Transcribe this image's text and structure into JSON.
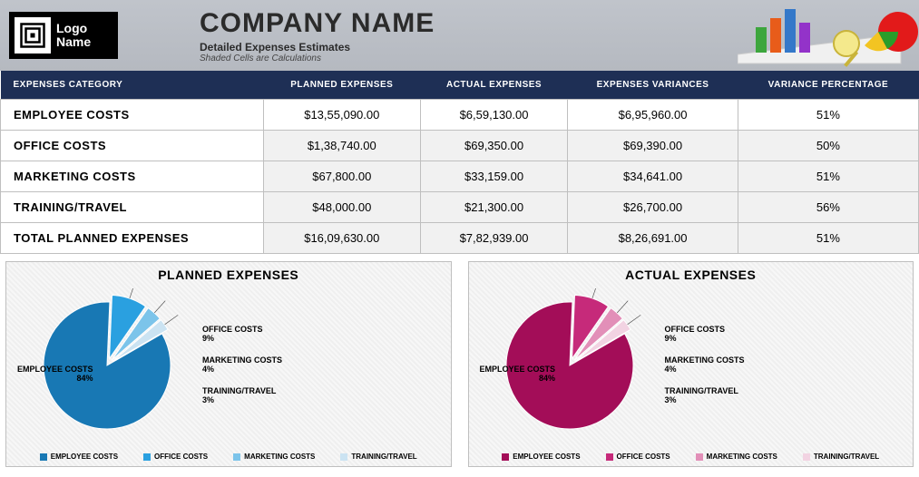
{
  "header": {
    "logo_line1": "Logo",
    "logo_line2": "Name",
    "company_name": "COMPANY NAME",
    "subtitle": "Detailed Expenses Estimates",
    "subnote": "Shaded Cells are Calculations"
  },
  "table": {
    "columns": [
      "EXPENSES CATEGORY",
      "PLANNED EXPENSES",
      "ACTUAL EXPENSES",
      "EXPENSES VARIANCES",
      "VARIANCE PERCENTAGE"
    ],
    "rows": [
      {
        "cat": "EMPLOYEE COSTS",
        "planned": "$13,55,090.00",
        "actual": "$6,59,130.00",
        "variance": "$6,95,960.00",
        "pct": "51%"
      },
      {
        "cat": "OFFICE COSTS",
        "planned": "$1,38,740.00",
        "actual": "$69,350.00",
        "variance": "$69,390.00",
        "pct": "50%"
      },
      {
        "cat": "MARKETING COSTS",
        "planned": "$67,800.00",
        "actual": "$33,159.00",
        "variance": "$34,641.00",
        "pct": "51%"
      },
      {
        "cat": "TRAINING/TRAVEL",
        "planned": "$48,000.00",
        "actual": "$21,300.00",
        "variance": "$26,700.00",
        "pct": "56%"
      },
      {
        "cat": "TOTAL PLANNED EXPENSES",
        "planned": "$16,09,630.00",
        "actual": "$7,82,939.00",
        "variance": "$8,26,691.00",
        "pct": "51%"
      }
    ],
    "header_bg": "#1e2f55",
    "header_fg": "#ffffff",
    "cell_border": "#bfbfbf",
    "shaded_bg": "#f1f1f1"
  },
  "charts": {
    "planned": {
      "title": "PLANNED EXPENSES",
      "type": "pie",
      "exploded": true,
      "slices": [
        {
          "label": "EMPLOYEE COSTS",
          "pct": 84,
          "color": "#1878b4"
        },
        {
          "label": "OFFICE COSTS",
          "pct": 9,
          "color": "#2aa0e0"
        },
        {
          "label": "MARKETING COSTS",
          "pct": 4,
          "color": "#7cc4ea"
        },
        {
          "label": "TRAINING/TRAVEL",
          "pct": 3,
          "color": "#cbe3f2"
        }
      ],
      "label_fontsize": 9,
      "title_fontsize": 14,
      "legend_colors": [
        "#1878b4",
        "#2aa0e0",
        "#7cc4ea",
        "#cbe3f2"
      ]
    },
    "actual": {
      "title": "ACTUAL EXPENSES",
      "type": "pie",
      "exploded": true,
      "slices": [
        {
          "label": "EMPLOYEE COSTS",
          "pct": 84,
          "color": "#a30d58"
        },
        {
          "label": "OFFICE COSTS",
          "pct": 9,
          "color": "#c62a7a"
        },
        {
          "label": "MARKETING COSTS",
          "pct": 4,
          "color": "#e28fb8"
        },
        {
          "label": "TRAINING/TRAVEL",
          "pct": 3,
          "color": "#f2d3e2"
        }
      ],
      "label_fontsize": 9,
      "title_fontsize": 14,
      "legend_colors": [
        "#a30d58",
        "#c62a7a",
        "#e28fb8",
        "#f2d3e2"
      ]
    },
    "background_pattern": "#efefef"
  }
}
